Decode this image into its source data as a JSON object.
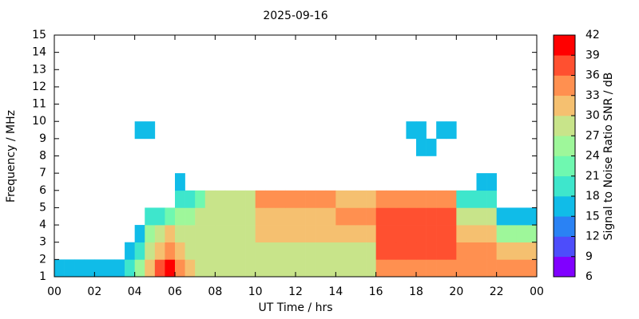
{
  "chart_data": {
    "type": "heatmap",
    "title": "2025-09-16",
    "x_label": "UT Time / hrs",
    "y_label": "Frequency / MHz",
    "colorbar_label": "Signal to Noise Ratio SNR / dB",
    "xlim": [
      0,
      24
    ],
    "ylim": [
      1,
      15
    ],
    "xticks": [
      {
        "value": 0,
        "label": "00"
      },
      {
        "value": 2,
        "label": "02"
      },
      {
        "value": 4,
        "label": "04"
      },
      {
        "value": 6,
        "label": "06"
      },
      {
        "value": 8,
        "label": "08"
      },
      10,
      12,
      14,
      16,
      18,
      20,
      22,
      {
        "value": 24,
        "label": "00"
      }
    ],
    "yticks": [
      1,
      2,
      3,
      4,
      5,
      6,
      7,
      8,
      9,
      10,
      11,
      12,
      13,
      14,
      15
    ],
    "clim": [
      6,
      42
    ],
    "cticks": [
      6,
      9,
      12,
      15,
      18,
      21,
      24,
      27,
      30,
      33,
      36,
      39,
      42
    ],
    "colors": [
      "#8000ff",
      "#4d4dfb",
      "#2a82f4",
      "#10bce8",
      "#3ee6cc",
      "#6ff8b0",
      "#9ef79a",
      "#c8e48a",
      "#f5c070",
      "#ff9050",
      "#ff5030",
      "#ff0000"
    ],
    "x": [
      0,
      0.5,
      1,
      1.5,
      2,
      2.5,
      3,
      3.5,
      4,
      4.5,
      5,
      5.5,
      6,
      6.5,
      7,
      7.5,
      8,
      8.5,
      9,
      9.5,
      10,
      10.5,
      11,
      11.5,
      12,
      12.5,
      13,
      13.5,
      14,
      14.5,
      15,
      15.5,
      16,
      16.5,
      17,
      17.5,
      18,
      18.5,
      19,
      19.5,
      20,
      20.5,
      21,
      21.5,
      22,
      22.5,
      23,
      23.5
    ],
    "y": [
      1,
      2,
      3,
      4,
      5,
      6,
      7,
      8,
      9,
      10,
      11,
      12,
      13,
      14
    ],
    "values": [
      [
        16,
        16,
        16,
        16,
        16,
        16,
        16,
        18,
        24,
        30,
        36,
        39,
        33,
        30,
        27,
        27,
        27,
        27,
        27,
        27,
        27,
        27,
        27,
        27,
        27,
        27,
        27,
        27,
        27,
        27,
        27,
        27,
        33,
        33,
        33,
        33,
        33,
        33,
        33,
        33,
        33,
        33,
        33,
        33,
        33,
        33,
        33,
        33
      ],
      [
        null,
        null,
        null,
        null,
        null,
        null,
        null,
        15,
        20,
        27,
        30,
        33,
        30,
        28,
        27,
        27,
        27,
        27,
        27,
        27,
        28,
        28,
        28,
        28,
        28,
        28,
        28,
        28,
        28,
        28,
        28,
        28,
        36,
        36,
        36,
        36,
        36,
        36,
        36,
        36,
        33,
        33,
        33,
        33,
        30,
        30,
        30,
        30
      ],
      [
        null,
        null,
        null,
        null,
        null,
        null,
        null,
        null,
        16,
        24,
        27,
        30,
        28,
        27,
        27,
        27,
        27,
        27,
        27,
        27,
        30,
        30,
        30,
        30,
        30,
        30,
        30,
        30,
        30,
        30,
        30,
        30,
        36,
        36,
        36,
        36,
        36,
        36,
        36,
        36,
        30,
        30,
        30,
        30,
        24,
        24,
        24,
        24
      ],
      [
        null,
        null,
        null,
        null,
        null,
        null,
        null,
        null,
        null,
        18,
        20,
        21,
        24,
        24,
        27,
        28,
        28,
        28,
        28,
        28,
        30,
        30,
        30,
        30,
        30,
        30,
        30,
        30,
        33,
        33,
        33,
        33,
        36,
        36,
        36,
        36,
        36,
        36,
        36,
        36,
        27,
        27,
        27,
        27,
        15,
        15,
        15,
        15
      ],
      [
        null,
        null,
        null,
        null,
        null,
        null,
        null,
        null,
        null,
        null,
        null,
        null,
        18,
        20,
        22,
        27,
        27,
        27,
        27,
        27,
        33,
        33,
        33,
        33,
        33,
        33,
        33,
        33,
        30,
        30,
        30,
        30,
        33,
        33,
        33,
        33,
        33,
        33,
        33,
        33,
        18,
        18,
        18,
        18,
        null,
        null,
        null,
        null
      ],
      [
        null,
        null,
        null,
        null,
        null,
        null,
        null,
        null,
        null,
        null,
        null,
        null,
        15,
        null,
        null,
        null,
        null,
        null,
        null,
        null,
        null,
        null,
        null,
        null,
        null,
        null,
        null,
        null,
        null,
        null,
        null,
        null,
        null,
        null,
        null,
        null,
        null,
        null,
        null,
        null,
        null,
        null,
        15,
        15,
        null,
        null,
        null,
        null
      ],
      [
        null,
        null,
        null,
        null,
        null,
        null,
        null,
        null,
        null,
        null,
        null,
        null,
        null,
        null,
        null,
        null,
        null,
        null,
        null,
        null,
        null,
        null,
        null,
        null,
        null,
        null,
        null,
        null,
        null,
        null,
        null,
        null,
        null,
        null,
        null,
        null,
        null,
        null,
        null,
        null,
        null,
        null,
        null,
        null,
        null,
        null,
        null,
        null
      ],
      [
        null,
        null,
        null,
        null,
        null,
        null,
        null,
        null,
        null,
        null,
        null,
        null,
        null,
        null,
        null,
        null,
        null,
        null,
        null,
        null,
        null,
        null,
        null,
        null,
        null,
        null,
        null,
        null,
        null,
        null,
        null,
        null,
        null,
        null,
        null,
        null,
        15,
        15,
        null,
        null,
        null,
        null,
        null,
        null,
        null,
        null,
        null,
        null
      ],
      [
        null,
        null,
        null,
        null,
        null,
        null,
        null,
        null,
        15,
        15,
        null,
        null,
        null,
        null,
        null,
        null,
        null,
        null,
        null,
        null,
        null,
        null,
        null,
        null,
        null,
        null,
        null,
        null,
        null,
        null,
        null,
        null,
        null,
        null,
        null,
        15,
        15,
        null,
        15,
        15,
        null,
        null,
        null,
        null,
        null,
        null,
        null,
        null
      ],
      [
        null,
        null,
        null,
        null,
        null,
        null,
        null,
        null,
        null,
        null,
        null,
        null,
        null,
        null,
        null,
        null,
        null,
        null,
        null,
        null,
        null,
        null,
        null,
        null,
        null,
        null,
        null,
        null,
        null,
        null,
        null,
        null,
        null,
        null,
        null,
        null,
        null,
        null,
        null,
        null,
        null,
        null,
        null,
        null,
        null,
        null,
        null,
        null
      ],
      [
        null,
        null,
        null,
        null,
        null,
        null,
        null,
        null,
        null,
        null,
        null,
        null,
        null,
        null,
        null,
        null,
        null,
        null,
        null,
        null,
        null,
        null,
        null,
        null,
        null,
        null,
        null,
        null,
        null,
        null,
        null,
        null,
        null,
        null,
        null,
        null,
        null,
        null,
        null,
        null,
        null,
        null,
        null,
        null,
        null,
        null,
        null,
        null
      ],
      [
        null,
        null,
        null,
        null,
        null,
        null,
        null,
        null,
        null,
        null,
        null,
        null,
        null,
        null,
        null,
        null,
        null,
        null,
        null,
        null,
        null,
        null,
        null,
        null,
        null,
        null,
        null,
        null,
        null,
        null,
        null,
        null,
        null,
        null,
        null,
        null,
        null,
        null,
        null,
        null,
        null,
        null,
        null,
        null,
        null,
        null,
        null,
        null
      ],
      [
        null,
        null,
        null,
        null,
        null,
        null,
        null,
        null,
        null,
        null,
        null,
        null,
        null,
        null,
        null,
        null,
        null,
        null,
        null,
        null,
        null,
        null,
        null,
        null,
        null,
        null,
        null,
        null,
        null,
        null,
        null,
        null,
        null,
        null,
        null,
        null,
        null,
        null,
        null,
        null,
        null,
        null,
        null,
        null,
        null,
        null,
        null,
        null
      ],
      [
        null,
        null,
        null,
        null,
        null,
        null,
        null,
        null,
        null,
        null,
        null,
        null,
        null,
        null,
        null,
        null,
        null,
        null,
        null,
        null,
        null,
        null,
        null,
        null,
        null,
        null,
        null,
        null,
        null,
        null,
        null,
        null,
        null,
        null,
        null,
        null,
        null,
        null,
        null,
        null,
        null,
        null,
        null,
        null,
        null,
        null,
        null,
        null
      ]
    ]
  }
}
